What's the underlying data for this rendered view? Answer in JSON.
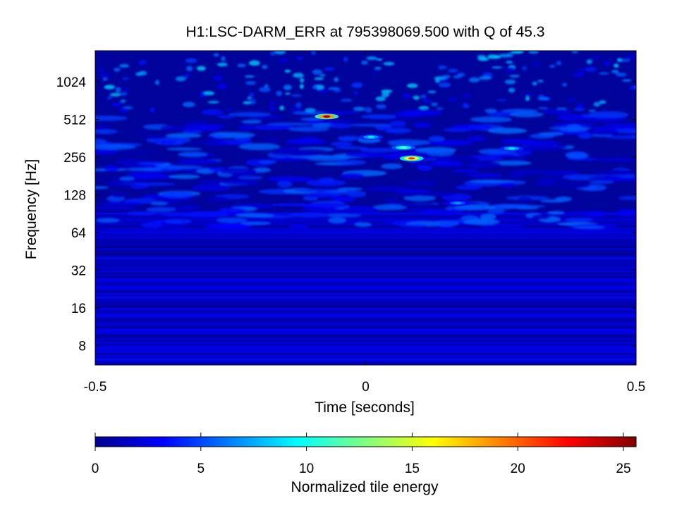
{
  "chart_data": {
    "type": "heatmap",
    "title": "H1:LSC-DARM_ERR at 795398069.500 with Q of 45.3",
    "xlabel": "Time [seconds]",
    "ylabel": "Frequency [Hz]",
    "x_ticks": [
      -0.5,
      0,
      0.5
    ],
    "x_tick_labels": [
      "-0.5",
      "0",
      "0.5"
    ],
    "xlim": [
      -0.5,
      0.5
    ],
    "y_scale": "log2",
    "y_ticks": [
      8,
      16,
      32,
      64,
      128,
      256,
      512,
      1024
    ],
    "y_tick_labels": [
      "8",
      "16",
      "32",
      "64",
      "128",
      "256",
      "512",
      "1024"
    ],
    "ylim": [
      5.6,
      1810
    ],
    "colorbar": {
      "label": "Normalized tile energy",
      "range": [
        0,
        25.6
      ],
      "ticks": [
        0,
        5,
        10,
        15,
        20,
        25
      ],
      "tick_labels": [
        "0",
        "5",
        "10",
        "15",
        "20",
        "25"
      ],
      "colormap": "jet"
    },
    "hot_spots": [
      {
        "time": -0.072,
        "frequency": 540,
        "energy": 25
      },
      {
        "time": 0.085,
        "frequency": 250,
        "energy": 21
      },
      {
        "time": 0.07,
        "frequency": 305,
        "energy": 12
      },
      {
        "time": 0.01,
        "frequency": 370,
        "energy": 9
      },
      {
        "time": 0.17,
        "frequency": 110,
        "energy": 7
      },
      {
        "time": 0.27,
        "frequency": 300,
        "energy": 9
      }
    ]
  }
}
